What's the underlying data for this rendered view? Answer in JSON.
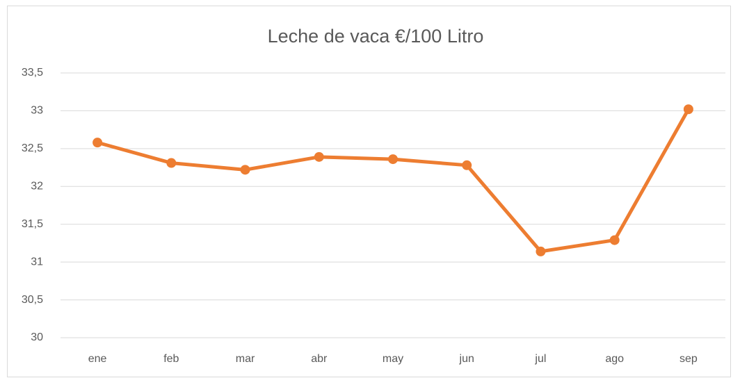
{
  "chart_data": {
    "type": "line",
    "title": "Leche de vaca €/100 Litro",
    "categories": [
      "ene",
      "feb",
      "mar",
      "abr",
      "may",
      "jun",
      "jul",
      "ago",
      "sep"
    ],
    "series": [
      {
        "name": "Leche de vaca €/100 Litro",
        "color": "#ed7d31",
        "values": [
          32.58,
          32.31,
          32.22,
          32.39,
          32.36,
          32.28,
          31.14,
          31.29,
          33.02
        ]
      }
    ],
    "ylim": [
      30,
      33.5
    ],
    "yticks": [
      30,
      {
        "value": 30.5,
        "label": "30,5"
      },
      31,
      {
        "value": 31.5,
        "label": "31,5"
      },
      32,
      {
        "value": 32.5,
        "label": "32,5"
      },
      33,
      {
        "value": 33.5,
        "label": "33,5"
      }
    ],
    "grid": true
  }
}
